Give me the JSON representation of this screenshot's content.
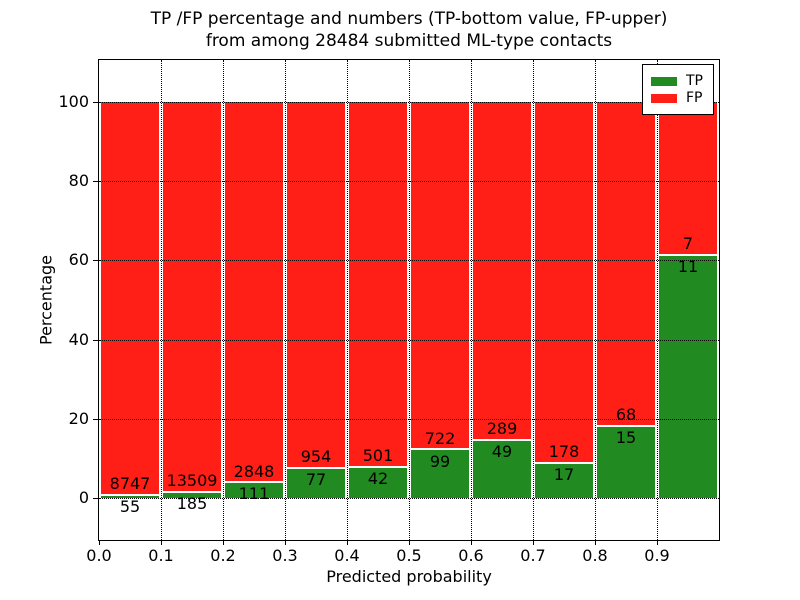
{
  "title": {
    "line1": "TP /FP percentage and numbers (TP-bottom value, FP-upper)",
    "line2": "from among 28484 submitted ML-type contacts"
  },
  "chart_data": {
    "type": "bar",
    "stacked": true,
    "normalized": "each bar scaled to 100%",
    "title": "TP /FP percentage and numbers (TP-bottom value, FP-upper)\nfrom among 28484 submitted ML-type contacts",
    "xlabel": "Predicted probability",
    "ylabel": "Percentage",
    "total_contacts": 28484,
    "categories": [
      "0.0",
      "0.1",
      "0.2",
      "0.3",
      "0.4",
      "0.5",
      "0.6",
      "0.7",
      "0.8",
      "0.9"
    ],
    "bin_width": 0.1,
    "series": [
      {
        "name": "TP",
        "color": "#218a21",
        "counts": [
          55,
          185,
          111,
          77,
          42,
          99,
          49,
          17,
          15,
          11
        ]
      },
      {
        "name": "FP",
        "color": "#ff1f16",
        "counts": [
          8747,
          13509,
          2848,
          954,
          501,
          722,
          289,
          178,
          68,
          7
        ]
      }
    ],
    "tp_percent_of_bin": [
      0.62,
      1.35,
      3.75,
      7.47,
      7.73,
      12.06,
      14.5,
      8.72,
      18.07,
      61.11
    ],
    "xticks": [
      "0.0",
      "0.1",
      "0.2",
      "0.3",
      "0.4",
      "0.5",
      "0.6",
      "0.7",
      "0.8",
      "0.9"
    ],
    "yticks": [
      0,
      20,
      40,
      60,
      80,
      100
    ],
    "xlim": [
      0,
      1
    ],
    "ylim": [
      -10.5,
      110.5
    ],
    "grid": "dotted both axes",
    "legend_position": "upper right",
    "legend": [
      "TP",
      "FP"
    ],
    "bar_edge_color": "#ffffff"
  }
}
